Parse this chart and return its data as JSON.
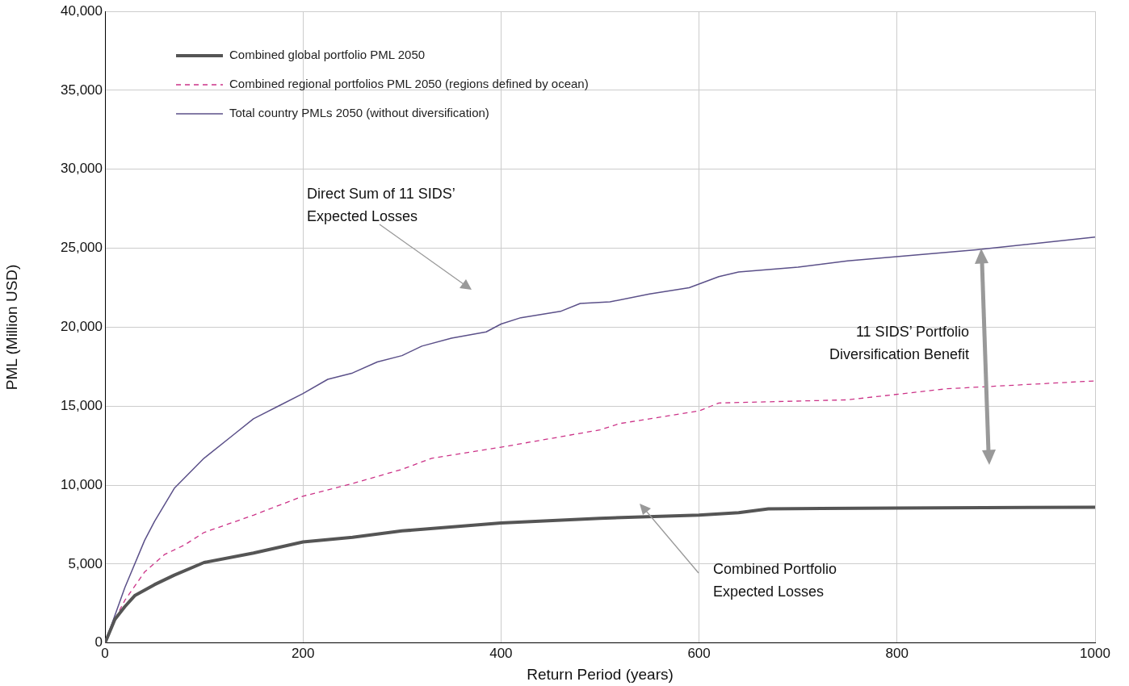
{
  "chart_data": {
    "type": "line",
    "xlabel": "Return Period (years)",
    "ylabel": "PML (Million USD)",
    "xlim": [
      0,
      1000
    ],
    "xticks": [
      0,
      200,
      400,
      600,
      800,
      1000
    ],
    "ylim": [
      0,
      40000
    ],
    "yticks": [
      {
        "value": 0,
        "label": "0"
      },
      {
        "value": 5000,
        "label": "5,000"
      },
      {
        "value": 10000,
        "label": "10,000"
      },
      {
        "value": 15000,
        "label": "15,000"
      },
      {
        "value": 20000,
        "label": "20,000"
      },
      {
        "value": 25000,
        "label": "25,000"
      },
      {
        "value": 30000,
        "label": "30,000"
      },
      {
        "value": 35000,
        "label": "35,000"
      },
      {
        "value": 40000,
        "label": "40,000"
      }
    ],
    "grid": true,
    "legend": "top left",
    "marker": "none",
    "annotations": [
      "Direct Sum of 11 SIDS’ Expected Losses",
      "Combined Portfolio Expected Losses",
      "11 SIDS’ Portfolio Diversification Benefit"
    ],
    "series": [
      {
        "name": "Combined global portfolio PML 2050",
        "color": "#555555",
        "line_style": "solid",
        "x": [
          0,
          10,
          20,
          30,
          50,
          70,
          100,
          150,
          200,
          250,
          300,
          400,
          500,
          600,
          640,
          670,
          800,
          1000
        ],
        "values": [
          0,
          1500,
          2300,
          3000,
          3700,
          4300,
          5100,
          5700,
          6400,
          6700,
          7100,
          7600,
          7900,
          8100,
          8250,
          8500,
          8550,
          8600
        ]
      },
      {
        "name": "Combined regional portfolios PML 2050 (regions defined by ocean)",
        "color": "#cc3388",
        "line_style": "dashed",
        "x": [
          0,
          10,
          20,
          40,
          60,
          80,
          100,
          150,
          200,
          250,
          300,
          330,
          400,
          500,
          520,
          600,
          620,
          750,
          850,
          1000
        ],
        "values": [
          0,
          1500,
          2700,
          4500,
          5600,
          6200,
          7000,
          8100,
          9300,
          10100,
          11000,
          11700,
          12400,
          13500,
          13900,
          14700,
          15200,
          15400,
          16100,
          16600
        ]
      },
      {
        "name": "Total country PMLs 2050 (without diversification)",
        "color": "#5b5089",
        "line_style": "solid",
        "x": [
          0,
          20,
          40,
          50,
          70,
          100,
          130,
          150,
          175,
          200,
          225,
          250,
          275,
          300,
          320,
          350,
          385,
          400,
          420,
          460,
          480,
          510,
          550,
          590,
          620,
          640,
          700,
          750,
          880,
          1000
        ],
        "values": [
          0,
          3500,
          6500,
          7700,
          9800,
          11700,
          13200,
          14200,
          15000,
          15800,
          16700,
          17100,
          17800,
          18200,
          18800,
          19300,
          19700,
          20200,
          20600,
          21000,
          21500,
          21600,
          22100,
          22500,
          23200,
          23500,
          23800,
          24200,
          24900,
          25700
        ]
      }
    ]
  }
}
